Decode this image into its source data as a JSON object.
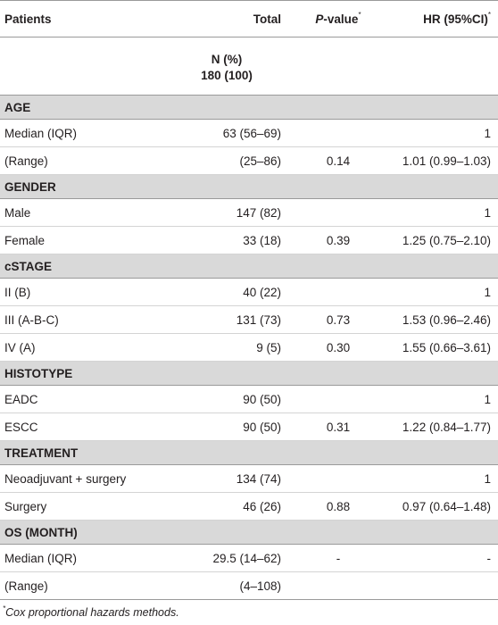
{
  "header": {
    "col1": "Patients",
    "col2": "Total",
    "col3_italic": "P",
    "col3_rest": "-value",
    "col3_sup": "*",
    "col4": "HR (95%CI)",
    "col4_sup": "*"
  },
  "npct": {
    "line1": "N (%)",
    "line2": "180 (100)"
  },
  "sections": [
    {
      "title": "AGE",
      "rows": [
        {
          "label": "Median (IQR)",
          "total": "63 (56–69)",
          "p": "",
          "hr": "1"
        },
        {
          "label": "(Range)",
          "total": "(25–86)",
          "p": "0.14",
          "hr": "1.01 (0.99–1.03)"
        }
      ]
    },
    {
      "title": "GENDER",
      "rows": [
        {
          "label": "Male",
          "total": "147 (82)",
          "p": "",
          "hr": "1"
        },
        {
          "label": "Female",
          "total": "33 (18)",
          "p": "0.39",
          "hr": "1.25 (0.75–2.10)"
        }
      ]
    },
    {
      "title": "cSTAGE",
      "rows": [
        {
          "label": "II (B)",
          "total": "40 (22)",
          "p": "",
          "hr": "1"
        },
        {
          "label": "III (A-B-C)",
          "total": "131 (73)",
          "p": "0.73",
          "hr": "1.53 (0.96–2.46)"
        },
        {
          "label": "IV (A)",
          "total": "9 (5)",
          "p": "0.30",
          "hr": "1.55 (0.66–3.61)"
        }
      ]
    },
    {
      "title": "HISTOTYPE",
      "rows": [
        {
          "label": "EADC",
          "total": "90 (50)",
          "p": "",
          "hr": "1"
        },
        {
          "label": "ESCC",
          "total": "90 (50)",
          "p": "0.31",
          "hr": "1.22 (0.84–1.77)"
        }
      ]
    },
    {
      "title": "TREATMENT",
      "rows": [
        {
          "label": "Neoadjuvant + surgery",
          "total": "134 (74)",
          "p": "",
          "hr": "1"
        },
        {
          "label": "Surgery",
          "total": "46 (26)",
          "p": "0.88",
          "hr": "0.97 (0.64–1.48)"
        }
      ]
    },
    {
      "title": "OS (MONTH)",
      "rows": [
        {
          "label": "Median (IQR)",
          "total": "29.5 (14–62)",
          "p": "-",
          "hr": "-"
        },
        {
          "label": "(Range)",
          "total": "(4–108)",
          "p": "",
          "hr": ""
        }
      ]
    }
  ],
  "footnote": {
    "sup": "*",
    "text": "Cox proportional hazards methods."
  }
}
